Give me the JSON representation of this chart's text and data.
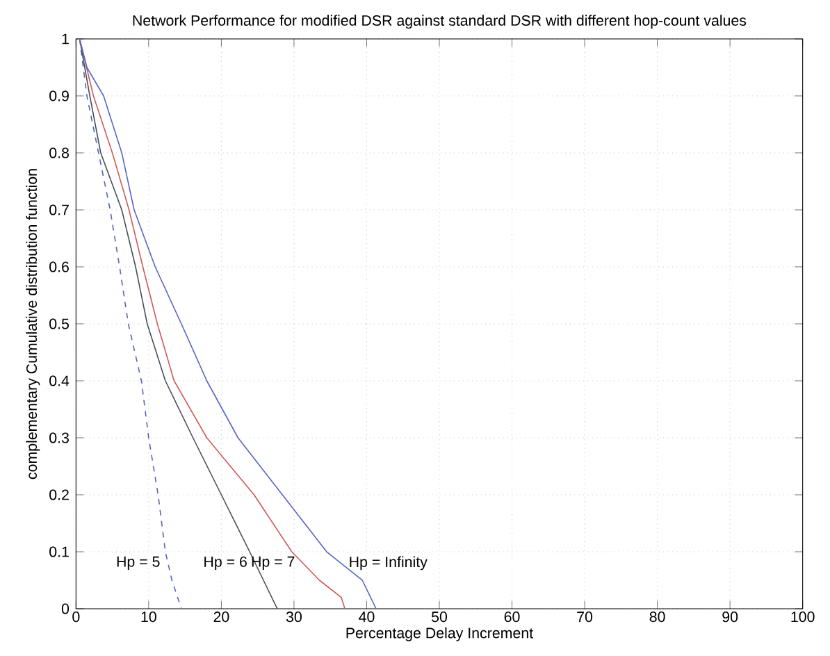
{
  "chart_data": {
    "type": "line",
    "title": "Network Performance for modified DSR against standard DSR with different hop-count values",
    "xlabel": "Percentage Delay Increment",
    "ylabel": "complementary Cumulative distribution function",
    "xlim": [
      0,
      100
    ],
    "ylim": [
      0,
      1
    ],
    "xticks": [
      0,
      10,
      20,
      30,
      40,
      50,
      60,
      70,
      80,
      90,
      100
    ],
    "yticks": [
      0,
      0.1,
      0.2,
      0.3,
      0.4,
      0.5,
      0.6,
      0.7,
      0.8,
      0.9,
      1
    ],
    "grid": true,
    "marker": "none",
    "series": [
      {
        "name": "Hp = 5",
        "color": "#5565b5",
        "line_style": "dashed",
        "x": [
          0.5,
          1.5,
          3.1,
          4.7,
          6,
          7.2,
          9,
          10,
          11.3,
          12.3,
          13.2,
          14.5
        ],
        "values": [
          1,
          0.9,
          0.8,
          0.7,
          0.6,
          0.5,
          0.4,
          0.3,
          0.2,
          0.1,
          0.05,
          0
        ]
      },
      {
        "name": "Hp = 6",
        "color": "#45505a",
        "line_style": "solid",
        "x": [
          0.5,
          1.9,
          3.4,
          6.3,
          8.2,
          9.8,
          12.3,
          16.1,
          20,
          23.9,
          27.7
        ],
        "values": [
          1,
          0.9,
          0.8,
          0.7,
          0.6,
          0.5,
          0.4,
          0.3,
          0.2,
          0.1,
          0
        ]
      },
      {
        "name": "Hp = 7",
        "color": "#d05858",
        "line_style": "solid",
        "x": [
          0.5,
          2.4,
          5,
          7.3,
          9.2,
          11.2,
          13.5,
          18,
          24.5,
          29.7,
          33.5,
          36.5,
          37
        ],
        "values": [
          1,
          0.9,
          0.8,
          0.7,
          0.6,
          0.5,
          0.4,
          0.3,
          0.2,
          0.1,
          0.05,
          0.02,
          0
        ]
      },
      {
        "name": "Hp = Infinity",
        "color": "#5565c5",
        "line_style": "solid",
        "x": [
          0.5,
          1.5,
          3.8,
          6.3,
          8,
          10.9,
          14.5,
          18,
          22.3,
          28.4,
          34.5,
          39.4,
          41.3
        ],
        "values": [
          1,
          0.95,
          0.9,
          0.8,
          0.7,
          0.6,
          0.5,
          0.4,
          0.3,
          0.2,
          0.1,
          0.05,
          0
        ]
      }
    ]
  }
}
